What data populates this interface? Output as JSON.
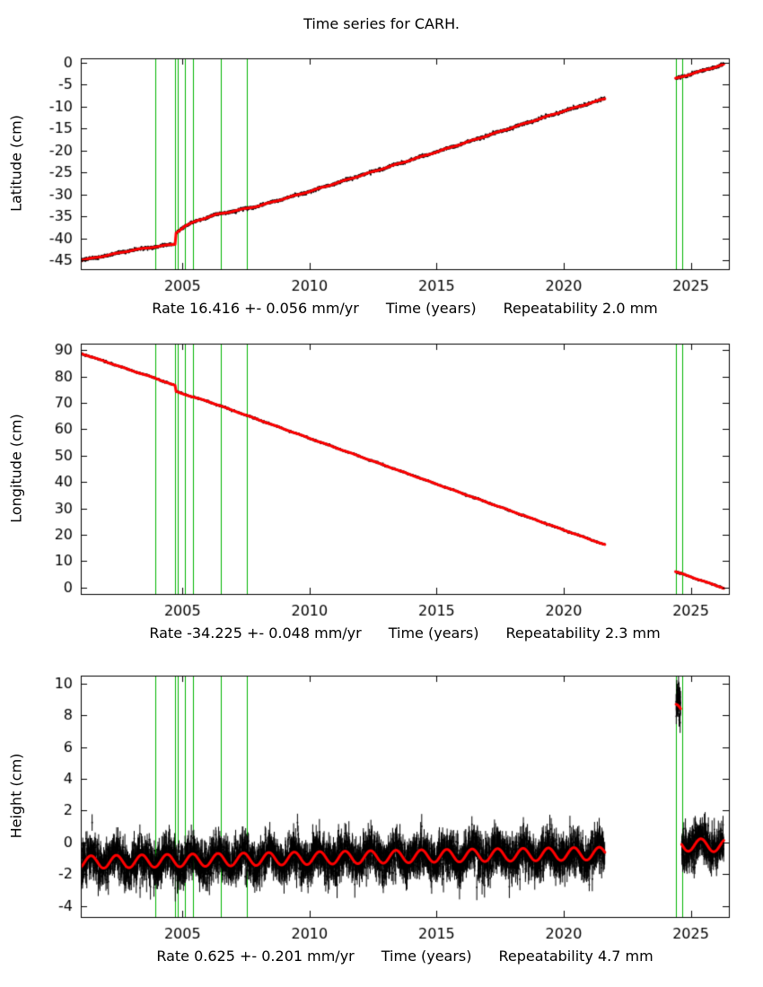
{
  "title": "Time series for CARH.",
  "colors": {
    "data": "#000000",
    "fit": "#ff0000",
    "event": "#00b400",
    "axis": "#000000",
    "background": "#ffffff"
  },
  "x_axis": {
    "lim": [
      2001.0,
      2026.5
    ],
    "ticks": [
      2005,
      2010,
      2015,
      2020,
      2025
    ],
    "data_start": 2001.03,
    "data_end": 2026.3
  },
  "events_x": [
    2003.93,
    2004.72,
    2004.82,
    2005.08,
    2005.42,
    2006.52,
    2007.55,
    2024.4,
    2024.66
  ],
  "chart_data": [
    {
      "type": "scatter",
      "name": "latitude",
      "ylabel": "Latitude (cm)",
      "ylim": [
        -47,
        1
      ],
      "yticks": [
        0,
        -5,
        -10,
        -15,
        -20,
        -25,
        -30,
        -35,
        -40,
        -45
      ],
      "trend": [
        [
          2001.0,
          -45.0
        ],
        [
          2002.0,
          -43.9
        ],
        [
          2003.0,
          -42.7
        ],
        [
          2003.93,
          -41.9
        ],
        [
          2004.71,
          -41.3
        ],
        [
          2004.75,
          -38.7
        ],
        [
          2005.1,
          -37.2
        ],
        [
          2005.6,
          -35.9
        ],
        [
          2006.3,
          -34.6
        ],
        [
          2007.0,
          -33.8
        ],
        [
          2008.0,
          -32.6
        ],
        [
          2010.0,
          -29.3
        ],
        [
          2015.0,
          -20.3
        ],
        [
          2020.0,
          -11.0
        ],
        [
          2021.62,
          -8.2
        ],
        [
          2024.4,
          -3.6
        ],
        [
          2026.3,
          -0.4
        ]
      ],
      "gaps": [
        [
          2021.62,
          2024.4
        ]
      ],
      "noise": 0.15,
      "seasonal_amp": 0.08,
      "seasonal_phase": 0.1,
      "ebar": [
        0.15,
        0.15
      ],
      "grid": false,
      "legend": false,
      "rate_text": "Rate 16.416 +- 0.056 mm/yr",
      "xlabel": "Time (years)",
      "repeatability_text": "Repeatability 2.0 mm"
    },
    {
      "type": "scatter",
      "name": "longitude",
      "ylabel": "Longitude (cm)",
      "ylim": [
        -2.5,
        92.5
      ],
      "yticks": [
        90,
        80,
        70,
        60,
        50,
        40,
        30,
        20,
        10,
        0
      ],
      "trend": [
        [
          2001.0,
          88.8
        ],
        [
          2002.0,
          85.6
        ],
        [
          2003.0,
          82.3
        ],
        [
          2003.93,
          79.4
        ],
        [
          2004.71,
          76.6
        ],
        [
          2004.75,
          74.3
        ],
        [
          2005.3,
          72.6
        ],
        [
          2006.0,
          70.6
        ],
        [
          2010.0,
          56.6
        ],
        [
          2015.0,
          39.2
        ],
        [
          2020.0,
          21.8
        ],
        [
          2021.62,
          16.2
        ],
        [
          2024.4,
          6.0
        ],
        [
          2026.3,
          -0.3
        ]
      ],
      "gaps": [
        [
          2021.62,
          2024.4
        ]
      ],
      "noise": 0.15,
      "seasonal_amp": 0.08,
      "seasonal_phase": 0.45,
      "ebar": [
        0.15,
        0.15
      ],
      "grid": false,
      "legend": false,
      "rate_text": "Rate -34.225 +- 0.048 mm/yr",
      "xlabel": "Time (years)",
      "repeatability_text": "Repeatability 2.3 mm"
    },
    {
      "type": "scatter",
      "name": "height",
      "ylabel": "Height (cm)",
      "ylim": [
        -4.7,
        10.5
      ],
      "yticks": [
        10,
        8,
        6,
        4,
        2,
        0,
        -2,
        -4
      ],
      "trend": [
        [
          2001.0,
          -1.25
        ],
        [
          2008.0,
          -1.05
        ],
        [
          2015.0,
          -0.85
        ],
        [
          2021.62,
          -0.7
        ],
        [
          2024.42,
          8.3
        ],
        [
          2024.6,
          8.3
        ],
        [
          2024.64,
          -0.15
        ],
        [
          2026.3,
          -0.2
        ]
      ],
      "gaps": [
        [
          2021.62,
          2024.42
        ],
        [
          2024.6,
          2024.64
        ]
      ],
      "noise": 0.55,
      "seasonal_amp": 0.4,
      "seasonal_phase": 0.15,
      "ebar": [
        0.4,
        0.45
      ],
      "grid": false,
      "legend": false,
      "rate_text": "Rate 0.625 +- 0.201 mm/yr",
      "xlabel": "Time (years)",
      "repeatability_text": "Repeatability 4.7 mm"
    }
  ]
}
